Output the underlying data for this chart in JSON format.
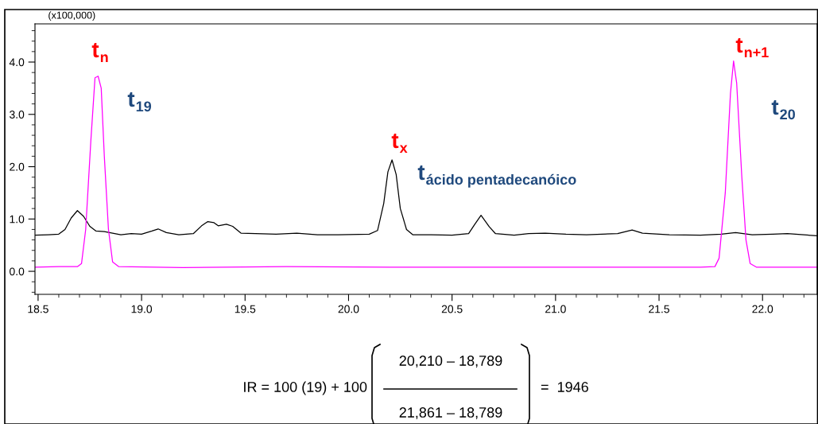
{
  "chart_data": {
    "type": "line",
    "xlim": [
      18.485,
      22.264
    ],
    "ylim": [
      -0.44,
      4.73
    ],
    "xticks": [
      {
        "value": 18.5,
        "label": "18.5"
      },
      {
        "value": 19.0,
        "label": "19.0"
      },
      {
        "value": 19.5,
        "label": "19.5"
      },
      {
        "value": 20.0,
        "label": "20.0"
      },
      {
        "value": 20.5,
        "label": "20.5"
      },
      {
        "value": 21.0,
        "label": "21.0"
      },
      {
        "value": 21.5,
        "label": "21.5"
      },
      {
        "value": 22.0,
        "label": "22.0"
      }
    ],
    "yticks": [
      {
        "value": 0,
        "label": "0.0"
      },
      {
        "value": 1,
        "label": "1.0"
      },
      {
        "value": 2,
        "label": "2.0"
      },
      {
        "value": 3,
        "label": "3.0"
      },
      {
        "value": 4,
        "label": "4.0"
      }
    ],
    "grid": false,
    "legend": false,
    "marker": "none",
    "line_style": "solid",
    "series": [
      {
        "color": "#000000",
        "x": [
          18.485,
          18.55,
          18.6,
          18.63,
          18.66,
          18.69,
          18.72,
          18.75,
          18.78,
          18.82,
          18.86,
          18.9,
          18.95,
          19.0,
          19.05,
          19.08,
          19.12,
          19.18,
          19.25,
          19.29,
          19.32,
          19.35,
          19.37,
          19.41,
          19.44,
          19.48,
          19.55,
          19.65,
          19.75,
          19.85,
          19.95,
          20.1,
          20.14,
          20.17,
          20.19,
          20.21,
          20.23,
          20.25,
          20.28,
          20.31,
          20.4,
          20.5,
          20.58,
          20.61,
          20.64,
          20.68,
          20.71,
          20.8,
          20.87,
          20.95,
          21.05,
          21.15,
          21.3,
          21.37,
          21.42,
          21.55,
          21.7,
          21.8,
          21.87,
          21.95,
          22.05,
          22.12,
          22.264
        ],
        "values": [
          0.69,
          0.7,
          0.71,
          0.8,
          1.02,
          1.16,
          1.05,
          0.86,
          0.77,
          0.76,
          0.73,
          0.7,
          0.72,
          0.71,
          0.77,
          0.81,
          0.74,
          0.7,
          0.72,
          0.87,
          0.95,
          0.93,
          0.87,
          0.9,
          0.86,
          0.73,
          0.72,
          0.71,
          0.73,
          0.7,
          0.7,
          0.71,
          0.78,
          1.3,
          1.9,
          2.13,
          1.85,
          1.2,
          0.8,
          0.7,
          0.7,
          0.69,
          0.72,
          0.9,
          1.07,
          0.85,
          0.72,
          0.69,
          0.72,
          0.73,
          0.71,
          0.7,
          0.72,
          0.79,
          0.73,
          0.7,
          0.69,
          0.71,
          0.74,
          0.7,
          0.71,
          0.72,
          0.68
        ]
      },
      {
        "color": "#ff00ff",
        "x": [
          18.485,
          18.6,
          18.69,
          18.71,
          18.73,
          18.755,
          18.775,
          18.79,
          18.805,
          18.82,
          18.84,
          18.86,
          18.89,
          19.2,
          19.7,
          20.2,
          20.7,
          21.2,
          21.7,
          21.77,
          21.79,
          21.82,
          21.845,
          21.86,
          21.875,
          21.9,
          21.92,
          21.94,
          21.97,
          22.264
        ],
        "values": [
          0.08,
          0.09,
          0.09,
          0.15,
          0.8,
          2.5,
          3.7,
          3.73,
          3.5,
          2.2,
          0.8,
          0.18,
          0.09,
          0.07,
          0.09,
          0.08,
          0.08,
          0.08,
          0.08,
          0.09,
          0.25,
          1.5,
          3.4,
          4.02,
          3.6,
          1.8,
          0.6,
          0.15,
          0.08,
          0.08
        ]
      }
    ],
    "annotations": [
      "(x100,000)",
      "t$_{n}$",
      "t$_{19}$",
      "t$_{x}$",
      "t$_{ácido pentadecanóico}$",
      "t$_{n+1}$",
      "t$_{20}$",
      "IR = 100 (19) + 100",
      "20,210 – 18,789",
      "21,861 – 18,789",
      "=  1946"
    ]
  }
}
